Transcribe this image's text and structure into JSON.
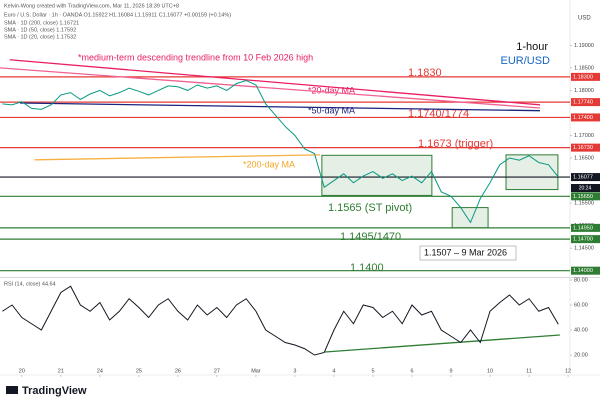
{
  "header": {
    "credit": "Kelvin-Wong created with TradingView.com, Mar 11, 2026 18:39 UTC+8",
    "symbol": "Euro / U.S. Dollar · 1h · OANDA  O1.15922 H1.16084 L1.15911 C1.16077 +0.00159 (+0.14%)",
    "sma": [
      "SMA · 1D (200, close)  1.16721",
      "SMA · 1D (50, close)  1.17592",
      "SMA · 1D (20, close)  1.17532"
    ]
  },
  "footer": {
    "brand": "TradingView"
  },
  "chart_data": [
    {
      "type": "line",
      "axis_label": "USD",
      "timeframe": "1-hour",
      "pair": "EUR/USD",
      "countdown": "20:24",
      "annotations": [
        "*medium-term descending trendline from 10 Feb 2026 high",
        "1.1830",
        "*20-day MA",
        "*50-day MA",
        "1.1740/1774",
        "1.1673 (trigger)",
        "*200-day MA",
        "1.1565 (ST pivot)",
        "1.1495/1470",
        "1.1507 – 9 Mar 2026",
        "1.1400"
      ],
      "xlim": [
        -0.56,
        14.05
      ],
      "ylim": [
        1.1386,
        1.1934
      ],
      "yticks": [
        {
          "value": 1.19,
          "label": "1.19000"
        },
        {
          "value": 1.185,
          "label": "1.18500"
        },
        {
          "value": 1.18,
          "label": "1.18000"
        },
        {
          "value": 1.17,
          "label": "1.17000"
        },
        {
          "value": 1.165,
          "label": "1.16500"
        },
        {
          "value": 1.155,
          "label": "1.15500"
        },
        {
          "value": 1.15,
          "label": "1.15000"
        },
        {
          "value": 1.145,
          "label": "1.14500"
        }
      ],
      "series": [
        {
          "color": "#089981",
          "x": [
            -0.5,
            -0.25,
            0,
            0.25,
            0.5,
            0.75,
            1,
            1.25,
            1.5,
            1.75,
            2,
            2.25,
            2.5,
            2.75,
            3,
            3.25,
            3.5,
            3.75,
            4,
            4.25,
            4.5,
            4.75,
            5,
            5.25,
            5.5,
            5.75,
            6,
            6.25,
            6.5,
            6.75,
            7,
            7.25,
            7.5,
            7.75,
            8,
            8.25,
            8.5,
            8.75,
            9,
            9.25,
            9.5,
            9.75,
            10,
            10.25,
            10.5,
            10.75,
            11,
            11.25,
            11.5,
            11.75,
            12,
            12.25,
            12.5,
            12.75,
            13,
            13.25,
            13.5,
            13.75
          ],
          "values": [
            1.177,
            1.1768,
            1.1775,
            1.176,
            1.1758,
            1.1768,
            1.179,
            1.1795,
            1.178,
            1.1792,
            1.18,
            1.1788,
            1.1795,
            1.1805,
            1.1798,
            1.179,
            1.18,
            1.181,
            1.1808,
            1.18,
            1.1812,
            1.1805,
            1.181,
            1.18,
            1.1815,
            1.1822,
            1.1812,
            1.177,
            1.1745,
            1.172,
            1.17,
            1.167,
            1.166,
            1.1585,
            1.16,
            1.1615,
            1.1595,
            1.161,
            1.162,
            1.1605,
            1.1615,
            1.16,
            1.161,
            1.1595,
            1.162,
            1.1575,
            1.1565,
            1.154,
            1.1507,
            1.156,
            1.1595,
            1.1635,
            1.165,
            1.1645,
            1.1655,
            1.164,
            1.1635,
            1.1608
          ]
        }
      ],
      "lines": [
        {
          "color": "#e91e63",
          "x": [
            -0.31,
            13.28
          ],
          "values": [
            1.1868,
            1.1768
          ]
        },
        {
          "color": "#f06292",
          "x": [
            -0.56,
            13.28
          ],
          "values": [
            1.185,
            1.1761
          ]
        },
        {
          "color": "#1a237e",
          "x": [
            -0.05,
            13.28
          ],
          "values": [
            1.1772,
            1.1755
          ]
        },
        {
          "color": "#f5b041",
          "x": [
            0.33,
            7.64
          ],
          "values": [
            1.1646,
            1.1657
          ]
        }
      ],
      "boxes": [
        {
          "x": [
            7.69,
            10.51
          ],
          "y": [
            1.1656,
            1.1567
          ]
        },
        {
          "x": [
            11.03,
            11.95
          ],
          "y": [
            1.154,
            1.1495
          ]
        },
        {
          "x": [
            12.41,
            13.74
          ],
          "y": [
            1.1657,
            1.158
          ]
        }
      ],
      "levels": [
        {
          "value": 1.183,
          "label": "1.18300",
          "color": "#e53935"
        },
        {
          "value": 1.1774,
          "label": "1.17740",
          "color": "#e53935"
        },
        {
          "value": 1.174,
          "label": "1.17400",
          "color": "#e53935"
        },
        {
          "value": 1.1673,
          "label": "1.16730",
          "color": "#e53935"
        },
        {
          "value": 1.16077,
          "label": "1.16077",
          "color": "#131722"
        },
        {
          "value": 1.1565,
          "label": "1.15650",
          "color": "#2e7d32"
        },
        {
          "value": 1.1495,
          "label": "1.14950",
          "color": "#2e7d32"
        },
        {
          "value": 1.147,
          "label": "1.14700",
          "color": "#2e7d32"
        },
        {
          "value": 1.14,
          "label": "1.14000",
          "color": "#2e7d32"
        }
      ]
    },
    {
      "type": "line",
      "title": "RSI (14, close)  44.64",
      "xlim": [
        -0.56,
        14.05
      ],
      "ylim": [
        6.4,
        81.6
      ],
      "yticks": [
        {
          "value": 80,
          "label": "80.00"
        },
        {
          "value": 60,
          "label": "60.00"
        },
        {
          "value": 40,
          "label": "40.00"
        },
        {
          "value": 20,
          "label": "20.00"
        }
      ],
      "xticks": [
        {
          "value": 0,
          "label": "20"
        },
        {
          "value": 1,
          "label": "21"
        },
        {
          "value": 2,
          "label": "24"
        },
        {
          "value": 3,
          "label": "25"
        },
        {
          "value": 4,
          "label": "26"
        },
        {
          "value": 5,
          "label": "27"
        },
        {
          "value": 6,
          "label": "Mar"
        },
        {
          "value": 7,
          "label": "3"
        },
        {
          "value": 8,
          "label": "4"
        },
        {
          "value": 9,
          "label": "5"
        },
        {
          "value": 10,
          "label": "6"
        },
        {
          "value": 11,
          "label": "9"
        },
        {
          "value": 12,
          "label": "10"
        },
        {
          "value": 13,
          "label": "11"
        },
        {
          "value": 14,
          "label": "12"
        }
      ],
      "series": [
        {
          "color": "#131722",
          "x": [
            -0.5,
            -0.25,
            0,
            0.25,
            0.5,
            0.75,
            1,
            1.25,
            1.5,
            1.75,
            2,
            2.25,
            2.5,
            2.75,
            3,
            3.25,
            3.5,
            3.75,
            4,
            4.25,
            4.5,
            4.75,
            5,
            5.25,
            5.5,
            5.75,
            6,
            6.25,
            6.5,
            6.75,
            7,
            7.25,
            7.5,
            7.75,
            8,
            8.25,
            8.5,
            8.75,
            9,
            9.25,
            9.5,
            9.75,
            10,
            10.25,
            10.5,
            10.75,
            11,
            11.25,
            11.5,
            11.75,
            12,
            12.25,
            12.5,
            12.75,
            13,
            13.25,
            13.5,
            13.75
          ],
          "values": [
            55,
            60,
            50,
            45,
            40,
            55,
            70,
            75,
            60,
            55,
            62,
            48,
            55,
            65,
            58,
            50,
            60,
            65,
            55,
            48,
            60,
            52,
            58,
            50,
            60,
            65,
            55,
            40,
            35,
            30,
            28,
            25,
            20,
            22,
            40,
            55,
            45,
            60,
            58,
            50,
            55,
            45,
            60,
            52,
            55,
            40,
            35,
            30,
            40,
            30,
            55,
            62,
            68,
            60,
            65,
            55,
            58,
            44.64
          ]
        }
      ],
      "lines": [
        {
          "color": "#2e7d32",
          "x": [
            7.77,
            13.79
          ],
          "values": [
            22.4,
            36
          ]
        }
      ]
    }
  ]
}
